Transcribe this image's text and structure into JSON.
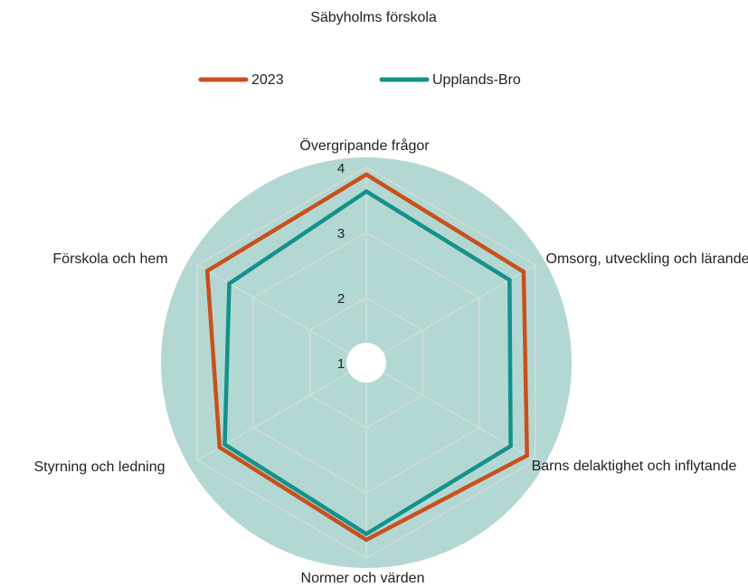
{
  "chart_data": {
    "type": "radar",
    "title": "Säbyholms förskola",
    "categories": [
      "Övergripande frågor",
      "Omsorg, utveckling och lärande",
      "Barns delaktighet och inflytande",
      "Normer och värden",
      "Styrning och ledning",
      "Förskola och hem"
    ],
    "series": [
      {
        "name": "2023",
        "color": "#c9501c",
        "values": [
          3.89,
          3.79,
          3.85,
          3.72,
          3.6,
          3.82
        ]
      },
      {
        "name": "Upplands-Bro",
        "color": "#14918a",
        "values": [
          3.63,
          3.54,
          3.56,
          3.63,
          3.51,
          3.43
        ]
      }
    ],
    "ylim": [
      1,
      4
    ],
    "yticks": [
      1,
      2,
      3,
      4
    ],
    "grid": true,
    "legend": "top"
  }
}
